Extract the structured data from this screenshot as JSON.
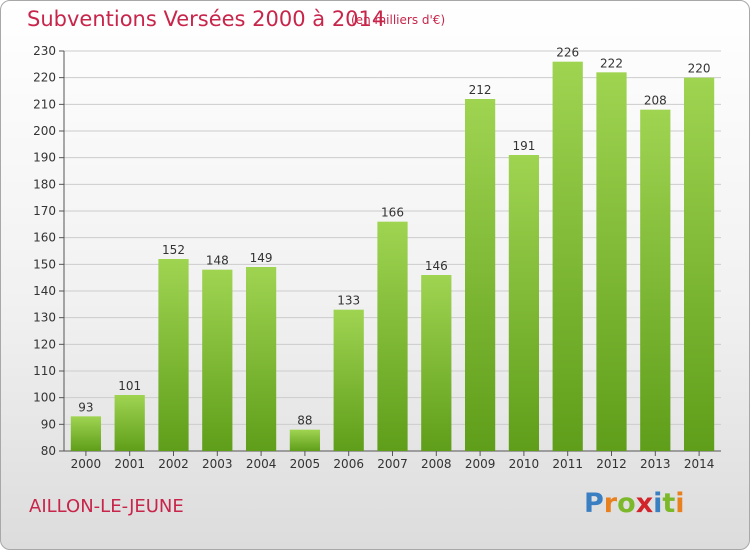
{
  "header": {
    "title": "Subventions Versées 2000 à 2014",
    "unit": "(en milliers d'€)"
  },
  "footer": {
    "commune": "AILLON-LE-JEUNE",
    "logo": "Proxiti",
    "logo_colors": [
      "#3a7fc1",
      "#e8801e",
      "#7cb829",
      "#d2232a",
      "#3a7fc1",
      "#7cb829",
      "#e8801e"
    ]
  },
  "colors": {
    "bar_light": "#9fd451",
    "bar_dark": "#5f9e1a",
    "grid": "#cccccc",
    "title": "#c8254a"
  },
  "chart_data": {
    "type": "bar",
    "title": "Subventions Versées 2000 à 2014",
    "subtitle": "(en milliers d'€)",
    "xlabel": "",
    "ylabel": "",
    "categories": [
      "2000",
      "2001",
      "2002",
      "2003",
      "2004",
      "2005",
      "2006",
      "2007",
      "2008",
      "2009",
      "2010",
      "2011",
      "2012",
      "2013",
      "2014"
    ],
    "values": [
      93,
      101,
      152,
      148,
      149,
      88,
      133,
      166,
      146,
      212,
      191,
      226,
      222,
      208,
      220
    ],
    "ylim": [
      80,
      230
    ],
    "yticks": [
      80,
      90,
      100,
      110,
      120,
      130,
      140,
      150,
      160,
      170,
      180,
      190,
      200,
      210,
      220,
      230
    ],
    "grid": true,
    "legend": "none"
  }
}
